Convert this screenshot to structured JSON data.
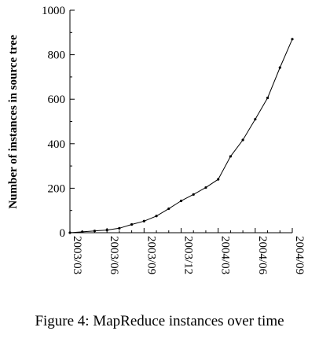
{
  "caption": "Figure 4: MapReduce instances over time",
  "chart_data": {
    "type": "line",
    "xlabel": "",
    "ylabel": "Number of instances in source tree",
    "ylim": [
      0,
      1000
    ],
    "y_ticks": [
      0,
      200,
      400,
      600,
      800,
      1000
    ],
    "x_ticks": [
      "2003/03",
      "2003/06",
      "2003/09",
      "2003/12",
      "2004/03",
      "2004/06",
      "2004/09"
    ],
    "x_range_months": [
      "2003/03",
      "2004/09"
    ],
    "grid": false,
    "series": [
      {
        "name": "",
        "points": [
          {
            "x": "2003/03",
            "y": 0
          },
          {
            "x": "2003/04",
            "y": 4
          },
          {
            "x": "2003/05",
            "y": 8
          },
          {
            "x": "2003/06",
            "y": 12
          },
          {
            "x": "2003/07",
            "y": 20
          },
          {
            "x": "2003/08",
            "y": 37
          },
          {
            "x": "2003/09",
            "y": 52
          },
          {
            "x": "2003/10",
            "y": 75
          },
          {
            "x": "2003/11",
            "y": 108
          },
          {
            "x": "2003/12",
            "y": 143
          },
          {
            "x": "2004/01",
            "y": 172
          },
          {
            "x": "2004/02",
            "y": 203
          },
          {
            "x": "2004/03",
            "y": 240
          },
          {
            "x": "2004/04",
            "y": 343
          },
          {
            "x": "2004/05",
            "y": 417
          },
          {
            "x": "2004/06",
            "y": 510
          },
          {
            "x": "2004/07",
            "y": 606
          },
          {
            "x": "2004/08",
            "y": 742
          },
          {
            "x": "2004/09",
            "y": 870
          }
        ]
      }
    ]
  }
}
